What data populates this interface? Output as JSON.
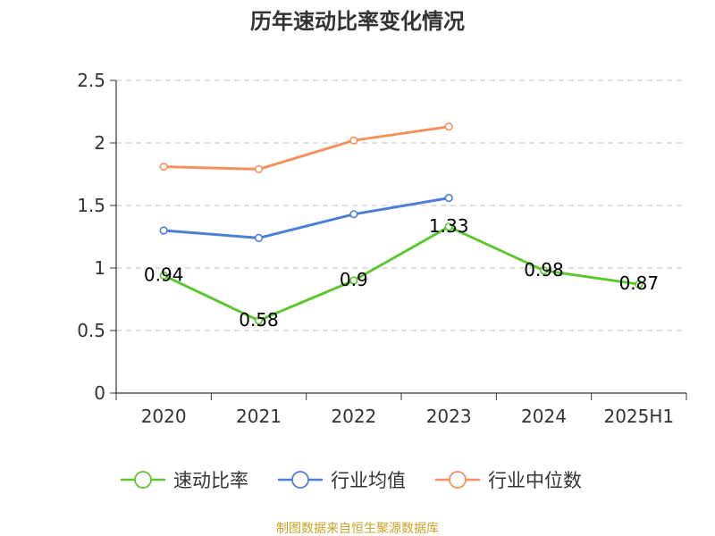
{
  "chart_data": {
    "type": "line",
    "title": "历年速动比率变化情况",
    "categories": [
      "2020",
      "2021",
      "2022",
      "2023",
      "2024",
      "2025H1"
    ],
    "ylim": [
      0,
      2.5
    ],
    "yticks": [
      "0",
      "0.5",
      "1",
      "1.5",
      "2",
      "2.5"
    ],
    "grid": true,
    "legend_position": "bottom",
    "series": [
      {
        "name": "速动比率",
        "color": "#5cc72f",
        "values": [
          0.94,
          0.58,
          0.9,
          1.33,
          0.98,
          0.87
        ],
        "labels": [
          "0.94",
          "0.58",
          "0.9",
          "1.33",
          "0.98",
          "0.87"
        ]
      },
      {
        "name": "行业均值",
        "color": "#4a7fd8",
        "values": [
          1.3,
          1.24,
          1.43,
          1.56,
          null,
          null
        ]
      },
      {
        "name": "行业中位数",
        "color": "#f5915c",
        "values": [
          1.81,
          1.79,
          2.02,
          2.13,
          null,
          null
        ]
      }
    ]
  },
  "source_text": "制图数据来自恒生聚源数据库"
}
